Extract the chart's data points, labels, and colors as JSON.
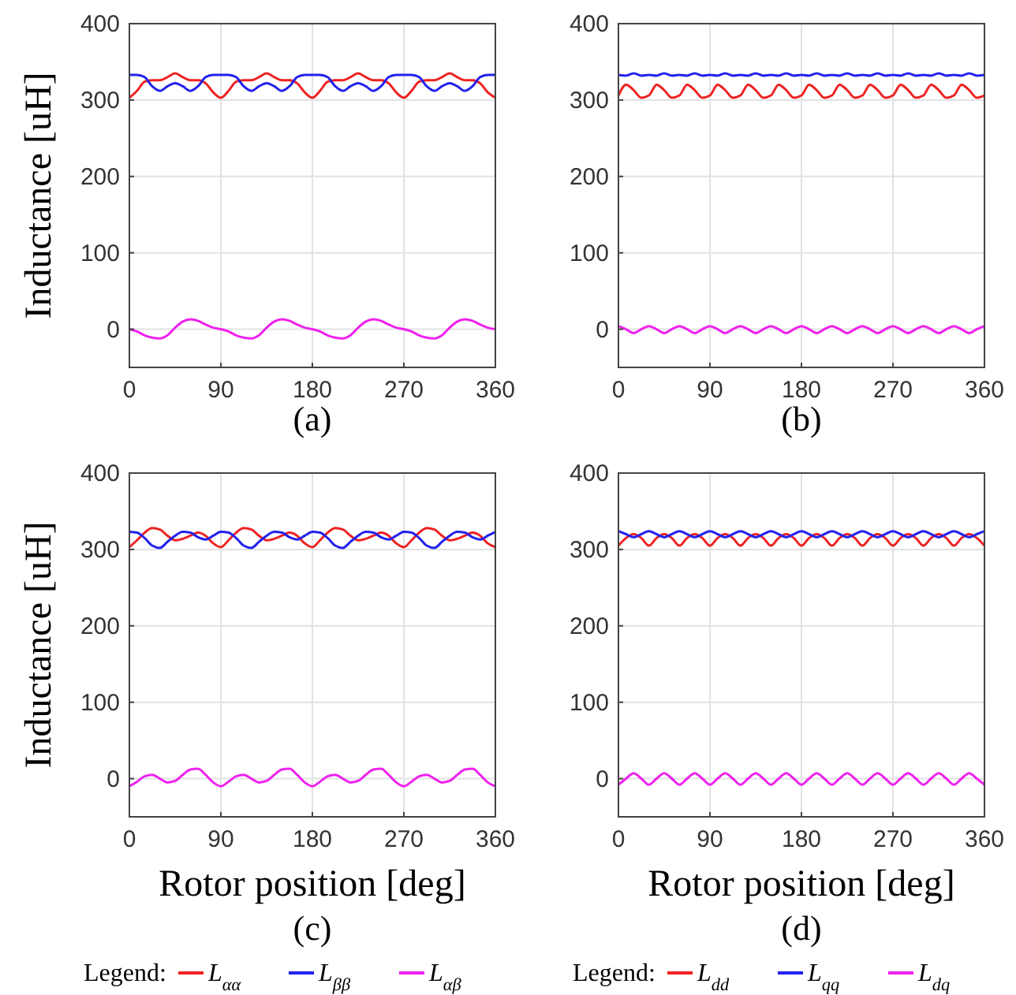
{
  "chart_data": [
    {
      "type": "line",
      "title": "(a)",
      "ylabel": "Inductance [uH]",
      "xlim": [
        0,
        360
      ],
      "xticks": [
        0,
        90,
        180,
        270,
        360
      ],
      "ylim": [
        -50,
        400
      ],
      "yticks": [
        0,
        100,
        200,
        300,
        400
      ],
      "grid": true,
      "x": [
        0,
        7.5,
        15,
        22.5,
        30,
        37.5,
        45,
        52.5,
        60,
        67.5,
        75,
        82.5,
        90,
        97.5,
        105,
        112.5,
        120,
        127.5,
        135,
        142.5,
        150,
        157.5,
        165,
        172.5,
        180,
        187.5,
        195,
        202.5,
        210,
        217.5,
        225,
        232.5,
        240,
        247.5,
        255,
        262.5,
        270,
        277.5,
        285,
        292.5,
        300,
        307.5,
        315,
        322.5,
        330,
        337.5,
        345,
        352.5,
        360
      ],
      "series": [
        {
          "color": "#ee2222",
          "values": [
            303,
            312,
            324,
            326,
            326,
            330,
            335,
            330,
            326,
            326,
            322,
            310,
            303,
            312,
            324,
            326,
            326,
            330,
            335,
            330,
            326,
            326,
            322,
            310,
            303,
            312,
            324,
            326,
            326,
            330,
            335,
            330,
            326,
            326,
            322,
            310,
            303,
            312,
            324,
            326,
            326,
            330,
            335,
            330,
            326,
            326,
            322,
            310,
            303
          ]
        },
        {
          "color": "#2222ee",
          "values": [
            333,
            333,
            330,
            318,
            312,
            318,
            322,
            318,
            312,
            318,
            330,
            333,
            333,
            333,
            330,
            318,
            312,
            318,
            322,
            318,
            312,
            318,
            330,
            333,
            333,
            333,
            330,
            318,
            312,
            318,
            322,
            318,
            312,
            318,
            330,
            333,
            333,
            333,
            330,
            318,
            312,
            318,
            322,
            318,
            312,
            318,
            330,
            333,
            333
          ]
        },
        {
          "color": "#ee22ee",
          "values": [
            0,
            -3,
            -8,
            -11,
            -12,
            -8,
            2,
            10,
            13,
            11,
            6,
            2,
            0,
            -3,
            -8,
            -11,
            -12,
            -8,
            2,
            10,
            13,
            11,
            6,
            2,
            0,
            -3,
            -8,
            -11,
            -12,
            -8,
            2,
            10,
            13,
            11,
            6,
            2,
            0,
            -3,
            -8,
            -11,
            -12,
            -8,
            2,
            10,
            13,
            11,
            6,
            2,
            0
          ]
        }
      ]
    },
    {
      "type": "line",
      "title": "(b)",
      "xlim": [
        0,
        360
      ],
      "xticks": [
        0,
        90,
        180,
        270,
        360
      ],
      "ylim": [
        -50,
        400
      ],
      "yticks": [
        0,
        100,
        200,
        300,
        400
      ],
      "grid": true,
      "x": [
        0,
        7.5,
        15,
        22.5,
        30,
        37.5,
        45,
        52.5,
        60,
        67.5,
        75,
        82.5,
        90,
        97.5,
        105,
        112.5,
        120,
        127.5,
        135,
        142.5,
        150,
        157.5,
        165,
        172.5,
        180,
        187.5,
        195,
        202.5,
        210,
        217.5,
        225,
        232.5,
        240,
        247.5,
        255,
        262.5,
        270,
        277.5,
        285,
        292.5,
        300,
        307.5,
        315,
        322.5,
        330,
        337.5,
        345,
        352.5,
        360
      ],
      "series": [
        {
          "color": "#ee2222",
          "values": [
            306,
            320,
            313,
            303,
            306,
            320,
            313,
            303,
            306,
            320,
            313,
            303,
            306,
            320,
            313,
            303,
            306,
            320,
            313,
            303,
            306,
            320,
            313,
            303,
            306,
            320,
            313,
            303,
            306,
            320,
            313,
            303,
            306,
            320,
            313,
            303,
            306,
            320,
            313,
            303,
            306,
            320,
            313,
            303,
            306,
            320,
            313,
            303,
            306
          ]
        },
        {
          "color": "#2222ee",
          "values": [
            333,
            332,
            335,
            332,
            333,
            332,
            335,
            332,
            333,
            332,
            335,
            332,
            333,
            332,
            335,
            332,
            333,
            332,
            335,
            332,
            333,
            332,
            335,
            332,
            333,
            332,
            335,
            332,
            333,
            332,
            335,
            332,
            333,
            332,
            335,
            332,
            333,
            332,
            335,
            332,
            333,
            332,
            335,
            332,
            333,
            332,
            335,
            332,
            333
          ]
        },
        {
          "color": "#ee22ee",
          "values": [
            4,
            0,
            -5,
            0,
            4,
            0,
            -5,
            0,
            4,
            0,
            -5,
            0,
            4,
            0,
            -5,
            0,
            4,
            0,
            -5,
            0,
            4,
            0,
            -5,
            0,
            4,
            0,
            -5,
            0,
            4,
            0,
            -5,
            0,
            4,
            0,
            -5,
            0,
            4,
            0,
            -5,
            0,
            4,
            0,
            -5,
            0,
            4,
            0,
            -5,
            0,
            4
          ]
        }
      ]
    },
    {
      "type": "line",
      "title": "(c)",
      "xlabel": "Rotor position [deg]",
      "ylabel": "Inductance [uH]",
      "xlim": [
        0,
        360
      ],
      "xticks": [
        0,
        90,
        180,
        270,
        360
      ],
      "ylim": [
        -50,
        400
      ],
      "yticks": [
        0,
        100,
        200,
        300,
        400
      ],
      "grid": true,
      "legend": "bottom",
      "legend_title": "Legend:",
      "x": [
        0,
        7.5,
        15,
        22.5,
        30,
        37.5,
        45,
        52.5,
        60,
        67.5,
        75,
        82.5,
        90,
        97.5,
        105,
        112.5,
        120,
        127.5,
        135,
        142.5,
        150,
        157.5,
        165,
        172.5,
        180,
        187.5,
        195,
        202.5,
        210,
        217.5,
        225,
        232.5,
        240,
        247.5,
        255,
        262.5,
        270,
        277.5,
        285,
        292.5,
        300,
        307.5,
        315,
        322.5,
        330,
        337.5,
        345,
        352.5,
        360
      ],
      "series": [
        {
          "name": "L$_{αα}$",
          "color": "#ee2222",
          "values": [
            303,
            312,
            322,
            328,
            326,
            318,
            312,
            314,
            318,
            322,
            318,
            308,
            303,
            312,
            322,
            328,
            326,
            318,
            312,
            314,
            318,
            322,
            318,
            308,
            303,
            312,
            322,
            328,
            326,
            318,
            312,
            314,
            318,
            322,
            318,
            308,
            303,
            312,
            322,
            328,
            326,
            318,
            312,
            314,
            318,
            322,
            318,
            308,
            303
          ]
        },
        {
          "name": "L$_{ββ}$",
          "color": "#2222ee",
          "values": [
            323,
            322,
            315,
            305,
            302,
            310,
            318,
            323,
            322,
            316,
            313,
            318,
            323,
            322,
            315,
            305,
            302,
            310,
            318,
            323,
            322,
            316,
            313,
            318,
            323,
            322,
            315,
            305,
            302,
            310,
            318,
            323,
            322,
            316,
            313,
            318,
            323,
            322,
            315,
            305,
            302,
            310,
            318,
            323,
            322,
            316,
            313,
            318,
            323
          ]
        },
        {
          "name": "L$_{αβ}$",
          "color": "#ee22ee",
          "values": [
            -10,
            -4,
            3,
            5,
            0,
            -5,
            -3,
            5,
            12,
            13,
            5,
            -5,
            -10,
            -4,
            3,
            5,
            0,
            -5,
            -3,
            5,
            12,
            13,
            5,
            -5,
            -10,
            -4,
            3,
            5,
            0,
            -5,
            -3,
            5,
            12,
            13,
            5,
            -5,
            -10,
            -4,
            3,
            5,
            0,
            -5,
            -3,
            5,
            12,
            13,
            5,
            -5,
            -10
          ]
        }
      ]
    },
    {
      "type": "line",
      "title": "(d)",
      "xlabel": "Rotor position [deg]",
      "xlim": [
        0,
        360
      ],
      "xticks": [
        0,
        90,
        180,
        270,
        360
      ],
      "ylim": [
        -50,
        400
      ],
      "yticks": [
        0,
        100,
        200,
        300,
        400
      ],
      "grid": true,
      "legend": "bottom",
      "legend_title": "Legend:",
      "x": [
        0,
        7.5,
        15,
        22.5,
        30,
        37.5,
        45,
        52.5,
        60,
        67.5,
        75,
        82.5,
        90,
        97.5,
        105,
        112.5,
        120,
        127.5,
        135,
        142.5,
        150,
        157.5,
        165,
        172.5,
        180,
        187.5,
        195,
        202.5,
        210,
        217.5,
        225,
        232.5,
        240,
        247.5,
        255,
        262.5,
        270,
        277.5,
        285,
        292.5,
        300,
        307.5,
        315,
        322.5,
        330,
        337.5,
        345,
        352.5,
        360
      ],
      "series": [
        {
          "name": "L$_{dd}$",
          "color": "#ee2222",
          "values": [
            305,
            315,
            320,
            315,
            305,
            315,
            320,
            315,
            305,
            315,
            320,
            315,
            305,
            315,
            320,
            315,
            305,
            315,
            320,
            315,
            305,
            315,
            320,
            315,
            305,
            315,
            320,
            315,
            305,
            315,
            320,
            315,
            305,
            315,
            320,
            315,
            305,
            315,
            320,
            315,
            305,
            315,
            320,
            315,
            305,
            315,
            320,
            315,
            305
          ]
        },
        {
          "name": "L$_{qq}$",
          "color": "#2222ee",
          "values": [
            324,
            320,
            316,
            320,
            324,
            320,
            316,
            320,
            324,
            320,
            316,
            320,
            324,
            320,
            316,
            320,
            324,
            320,
            316,
            320,
            324,
            320,
            316,
            320,
            324,
            320,
            316,
            320,
            324,
            320,
            316,
            320,
            324,
            320,
            316,
            320,
            324,
            320,
            316,
            320,
            324,
            320,
            316,
            320,
            324,
            320,
            316,
            320,
            324
          ]
        },
        {
          "name": "L$_{dq}$",
          "color": "#ee22ee",
          "values": [
            -8,
            0,
            7,
            0,
            -8,
            0,
            7,
            0,
            -8,
            0,
            7,
            0,
            -8,
            0,
            7,
            0,
            -8,
            0,
            7,
            0,
            -8,
            0,
            7,
            0,
            -8,
            0,
            7,
            0,
            -8,
            0,
            7,
            0,
            -8,
            0,
            7,
            0,
            -8,
            0,
            7,
            0,
            -8,
            0,
            7,
            0,
            -8,
            0,
            7,
            0,
            -8
          ]
        }
      ]
    }
  ]
}
